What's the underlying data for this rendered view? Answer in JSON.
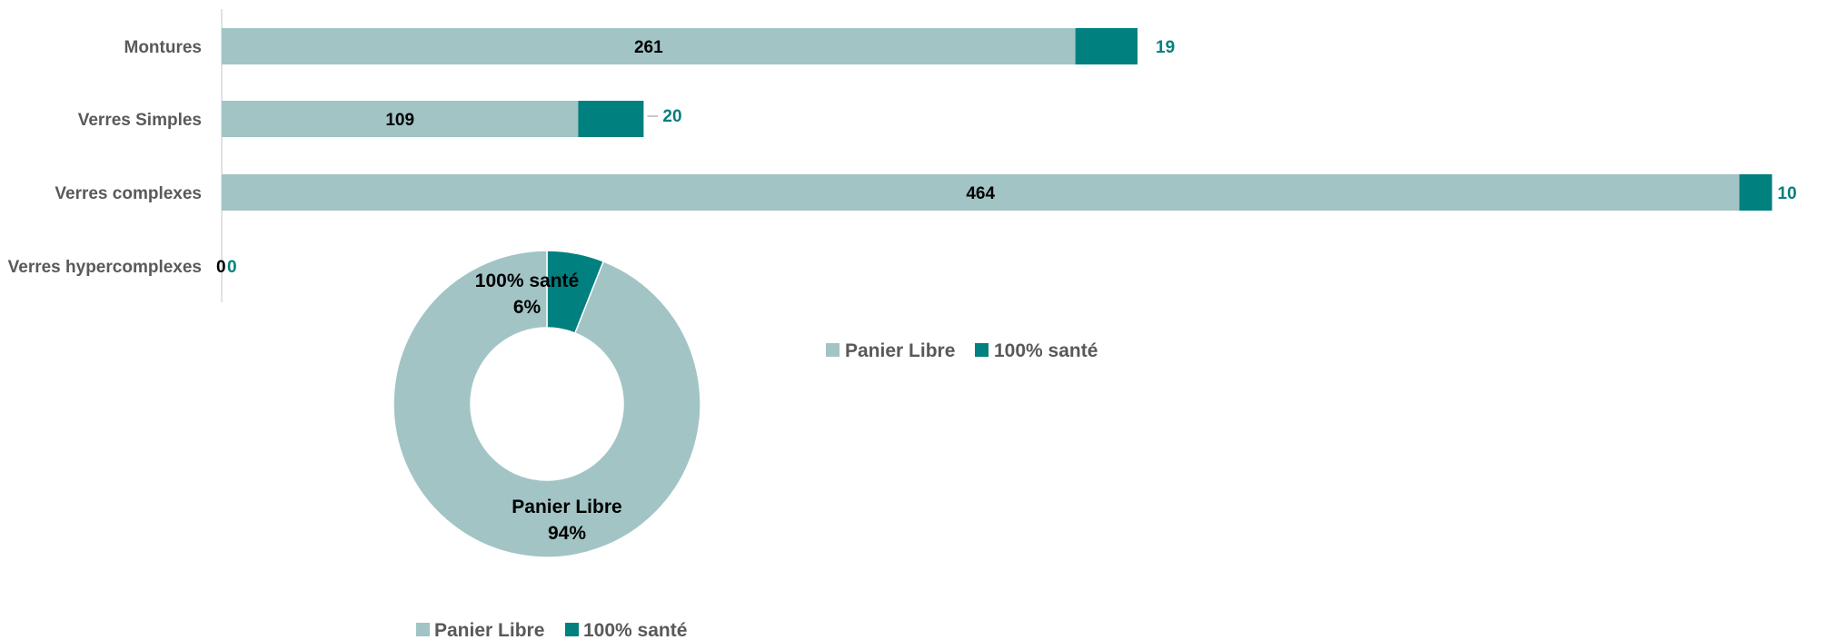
{
  "colors": {
    "panier_libre": "#a2c4c5",
    "sante_100": "#00807f",
    "axis": "#d9d9d9"
  },
  "chart_data": [
    {
      "type": "bar",
      "orientation": "horizontal",
      "stacked": true,
      "categories": [
        "Montures",
        "Verres Simples",
        "Verres complexes",
        "Verres hypercomplexes"
      ],
      "series": [
        {
          "name": "Panier Libre",
          "values": [
            261,
            109,
            464,
            0
          ]
        },
        {
          "name": "100% santé",
          "values": [
            19,
            20,
            10,
            0
          ]
        }
      ],
      "xlim": [
        0,
        474
      ],
      "grid": false,
      "legend": "right",
      "legend_labels": [
        "Panier Libre",
        "100% santé"
      ]
    },
    {
      "type": "pie",
      "donut": true,
      "slices": [
        {
          "name": "100% santé",
          "value": 6,
          "label": "6%"
        },
        {
          "name": "Panier Libre",
          "value": 94,
          "label": "94%"
        }
      ],
      "legend": "bottom",
      "legend_labels": [
        "Panier Libre",
        "100% santé"
      ]
    }
  ]
}
